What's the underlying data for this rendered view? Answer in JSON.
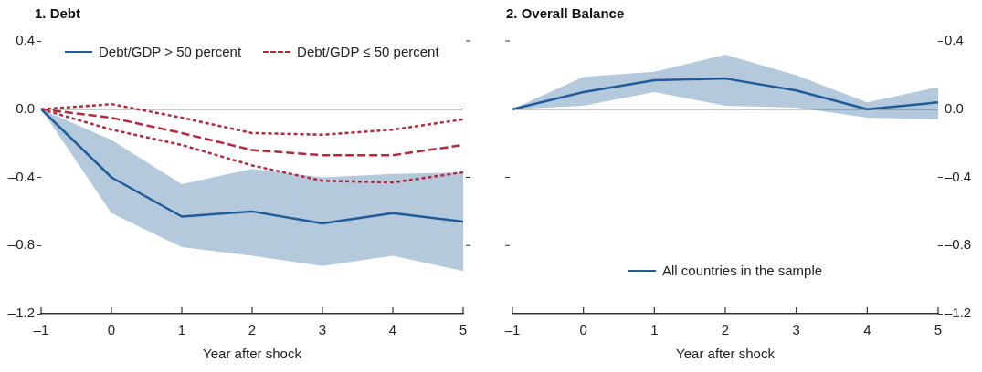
{
  "chart_data": [
    {
      "type": "line",
      "title": "1. Debt",
      "xlabel": "Year after shock",
      "x": [
        -1,
        0,
        1,
        2,
        3,
        4,
        5
      ],
      "xlim": [
        -1,
        5
      ],
      "xticks": [
        {
          "value": -1,
          "label": "–1"
        },
        0,
        1,
        2,
        3,
        4,
        5
      ],
      "ylim": [
        -1.2,
        0.4
      ],
      "yticks": [
        {
          "value": -1.2,
          "label": "–1.2"
        },
        {
          "value": -0.8,
          "label": "–0.8"
        },
        {
          "value": -0.4,
          "label": "–0.4"
        },
        {
          "value": 0,
          "label": "0.0"
        },
        0.4
      ],
      "legend": "top",
      "ref_lines": [
        {
          "axis": "y",
          "value": 0,
          "color": "#222222"
        }
      ],
      "series": [
        {
          "name": "Debt/GDP > 50 percent",
          "color": "#1f5c99",
          "values": [
            0,
            -0.4,
            -0.63,
            -0.6,
            -0.67,
            -0.61,
            -0.66
          ],
          "lower": [
            0,
            -0.61,
            -0.81,
            -0.86,
            -0.92,
            -0.86,
            -0.95
          ],
          "upper": [
            0,
            -0.18,
            -0.44,
            -0.35,
            -0.4,
            -0.38,
            -0.37
          ]
        },
        {
          "name": "Debt/GDP ≤ 50 percent",
          "color": "#b02a3c",
          "line_style": "dashed",
          "values": [
            0,
            -0.05,
            -0.14,
            -0.24,
            -0.27,
            -0.27,
            -0.21
          ]
        },
        {
          "color": "#b02a3c",
          "line_style": "dotted",
          "values": [
            0,
            0.03,
            -0.05,
            -0.14,
            -0.15,
            -0.12,
            -0.06
          ]
        },
        {
          "color": "#b02a3c",
          "line_style": "dotted",
          "values": [
            0,
            -0.12,
            -0.21,
            -0.33,
            -0.42,
            -0.43,
            -0.37
          ]
        }
      ]
    },
    {
      "type": "line",
      "title": "2. Overall Balance",
      "xlabel": "Year after shock",
      "x": [
        -1,
        0,
        1,
        2,
        3,
        4,
        5
      ],
      "xlim": [
        -1,
        5
      ],
      "xticks": [
        {
          "value": -1,
          "label": "–1"
        },
        0,
        1,
        2,
        3,
        4,
        5
      ],
      "y2lim": [
        -1.2,
        0.4
      ],
      "y2ticks": [
        {
          "value": -1.2,
          "label": "–1.2"
        },
        {
          "value": -0.8,
          "label": "–0.8"
        },
        {
          "value": -0.4,
          "label": "–0.4"
        },
        {
          "value": 0,
          "label": "0.0"
        },
        0.4
      ],
      "legend": "bottom",
      "ref_lines": [
        {
          "axis": "y2",
          "value": 0,
          "color": "#222222"
        }
      ],
      "series": [
        {
          "name": "All countries in the sample",
          "color": "#1f5c99",
          "axis": "y2",
          "values": [
            0,
            0.1,
            0.17,
            0.18,
            0.11,
            0,
            0.04
          ],
          "lower": [
            0,
            0.02,
            0.1,
            0.02,
            0.01,
            -0.05,
            -0.06
          ],
          "upper": [
            0,
            0.19,
            0.22,
            0.32,
            0.2,
            0.04,
            0.13
          ]
        }
      ]
    }
  ]
}
